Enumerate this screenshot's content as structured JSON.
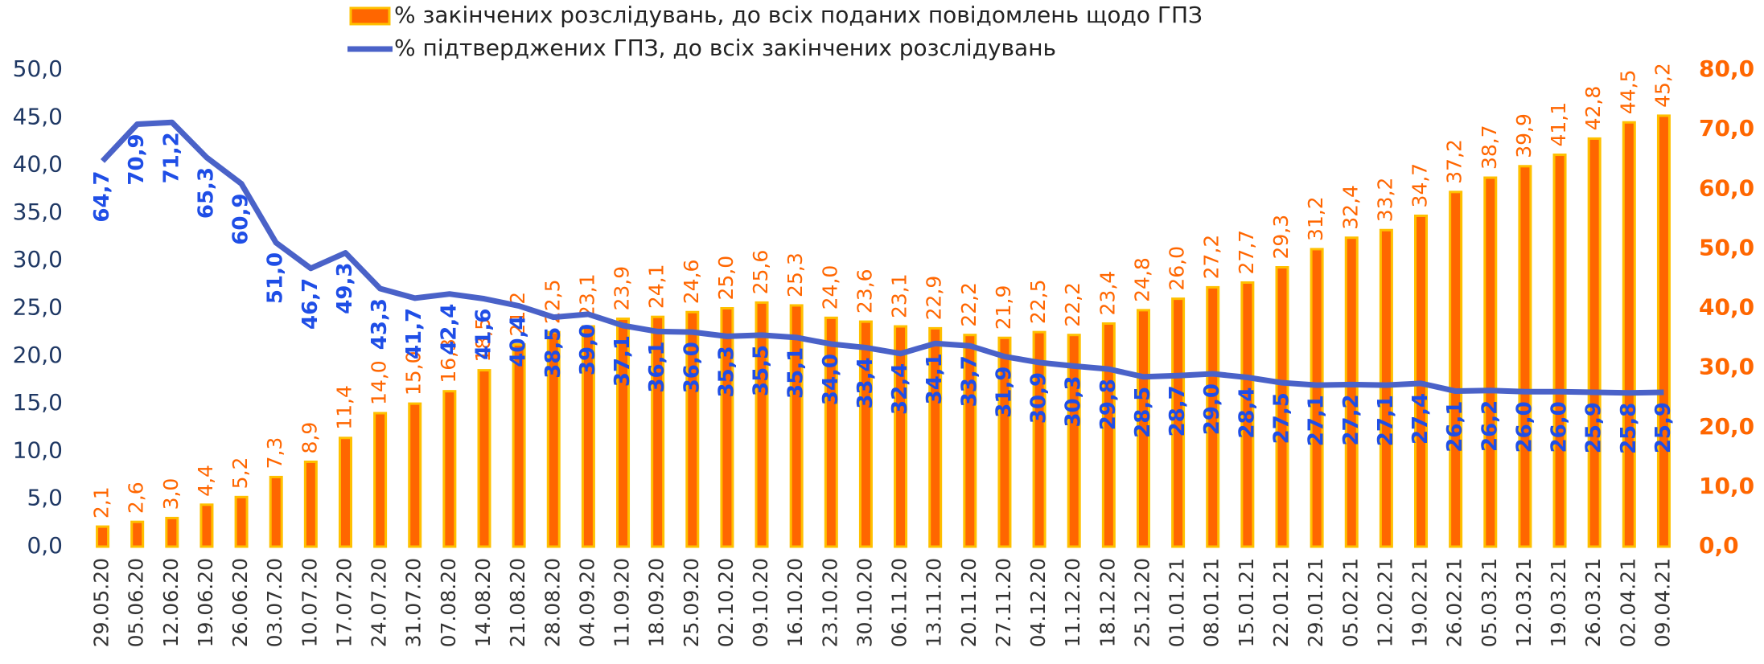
{
  "chart_data": {
    "type": "bar_line",
    "categories": [
      "29.05.20",
      "05.06.20",
      "12.06.20",
      "19.06.20",
      "26.06.20",
      "03.07.20",
      "10.07.20",
      "17.07.20",
      "24.07.20",
      "31.07.20",
      "07.08.20",
      "14.08.20",
      "21.08.20",
      "28.08.20",
      "04.09.20",
      "11.09.20",
      "18.09.20",
      "25.09.20",
      "02.10.20",
      "09.10.20",
      "16.10.20",
      "23.10.20",
      "30.10.20",
      "06.11.20",
      "13.11.20",
      "20.11.20",
      "27.11.20",
      "04.12.20",
      "11.12.20",
      "18.12.20",
      "25.12.20",
      "01.01.21",
      "08.01.21",
      "15.01.21",
      "22.01.21",
      "29.01.21",
      "05.02.21",
      "12.02.21",
      "19.02.21",
      "26.02.21",
      "05.03.21",
      "12.03.21",
      "19.03.21",
      "26.03.21",
      "02.04.21",
      "09.04.21"
    ],
    "series": [
      {
        "name": "% закінчених розслідувань, до всіх поданих повідомлень щодо ГПЗ",
        "type": "bar",
        "color": "#ff6600",
        "edge_color": "#ffc000",
        "axis": "y",
        "values": [
          2.1,
          2.6,
          3.0,
          4.4,
          5.2,
          7.3,
          8.9,
          11.4,
          14.0,
          15.0,
          16.3,
          18.5,
          21.2,
          22.5,
          23.1,
          23.9,
          24.1,
          24.6,
          25.0,
          25.6,
          25.3,
          24.0,
          23.6,
          23.1,
          22.9,
          22.2,
          21.9,
          22.5,
          22.2,
          23.4,
          24.8,
          26.0,
          27.2,
          27.7,
          29.3,
          31.2,
          32.4,
          33.2,
          34.7,
          37.2,
          38.7,
          39.9,
          41.1,
          42.8,
          44.5,
          45.2
        ],
        "value_labels": [
          "2,1",
          "2,6",
          "3,0",
          "4,4",
          "5,2",
          "7,3",
          "8,9",
          "11,4",
          "14,0",
          "15,0",
          "16,3",
          "18,5",
          "21,2",
          "22,5",
          "23,1",
          "23,9",
          "24,1",
          "24,6",
          "25,0",
          "25,6",
          "25,3",
          "24,0",
          "23,6",
          "23,1",
          "22,9",
          "22,2",
          "21,9",
          "22,5",
          "22,2",
          "23,4",
          "24,8",
          "26,0",
          "27,2",
          "27,7",
          "29,3",
          "31,2",
          "32,4",
          "33,2",
          "34,7",
          "37,2",
          "38,7",
          "39,9",
          "41,1",
          "42,8",
          "44,5",
          "45,2"
        ]
      },
      {
        "name": "% підтверджених ГПЗ, до всіх закінчених розслідувань",
        "type": "line",
        "color": "#4a62c8",
        "axis": "y2",
        "values": [
          64.7,
          70.9,
          71.2,
          65.3,
          60.9,
          51.0,
          46.7,
          49.3,
          43.3,
          41.7,
          42.4,
          41.6,
          40.4,
          38.5,
          39.0,
          37.1,
          36.1,
          36.0,
          35.3,
          35.5,
          35.1,
          34.0,
          33.4,
          32.4,
          34.1,
          33.7,
          31.9,
          30.9,
          30.3,
          29.8,
          28.5,
          28.7,
          29.0,
          28.4,
          27.5,
          27.1,
          27.2,
          27.1,
          27.4,
          26.1,
          26.2,
          26.0,
          26.0,
          25.9,
          25.8,
          25.9
        ],
        "value_labels": [
          "64,7",
          "70,9",
          "71,2",
          "65,3",
          "60,9",
          "51,0",
          "46,7",
          "49,3",
          "43,3",
          "41,7",
          "42,4",
          "41,6",
          "40,4",
          "38,5",
          "39,0",
          "37,1",
          "36,1",
          "36,0",
          "35,3",
          "35,5",
          "35,1",
          "34,0",
          "33,4",
          "32,4",
          "34,1",
          "33,7",
          "31,9",
          "30,9",
          "30,3",
          "29,8",
          "28,5",
          "28,7",
          "29,0",
          "28,4",
          "27,5",
          "27,1",
          "27,2",
          "27,1",
          "27,4",
          "26,1",
          "26,2",
          "26,0",
          "26,0",
          "25,9",
          "25,8",
          "25,9"
        ]
      }
    ],
    "ylim": [
      0,
      50
    ],
    "yticks": [
      {
        "value": 0,
        "label": "0,0"
      },
      {
        "value": 5,
        "label": "5,0"
      },
      {
        "value": 10,
        "label": "10,0"
      },
      {
        "value": 15,
        "label": "15,0"
      },
      {
        "value": 20,
        "label": "20,0"
      },
      {
        "value": 25,
        "label": "25,0"
      },
      {
        "value": 30,
        "label": "30,0"
      },
      {
        "value": 35,
        "label": "35,0"
      },
      {
        "value": 40,
        "label": "40,0"
      },
      {
        "value": 45,
        "label": "45,0"
      },
      {
        "value": 50,
        "label": "50,0"
      }
    ],
    "y2lim": [
      0,
      80
    ],
    "y2ticks": [
      {
        "value": 0,
        "label": "0,0"
      },
      {
        "value": 10,
        "label": "10,0"
      },
      {
        "value": 20,
        "label": "20,0"
      },
      {
        "value": 30,
        "label": "30,0"
      },
      {
        "value": 40,
        "label": "40,0"
      },
      {
        "value": 50,
        "label": "50,0"
      },
      {
        "value": 60,
        "label": "60,0"
      },
      {
        "value": 70,
        "label": "70,0"
      },
      {
        "value": 80,
        "label": "80,0"
      }
    ],
    "grid": false,
    "legend": "top"
  }
}
